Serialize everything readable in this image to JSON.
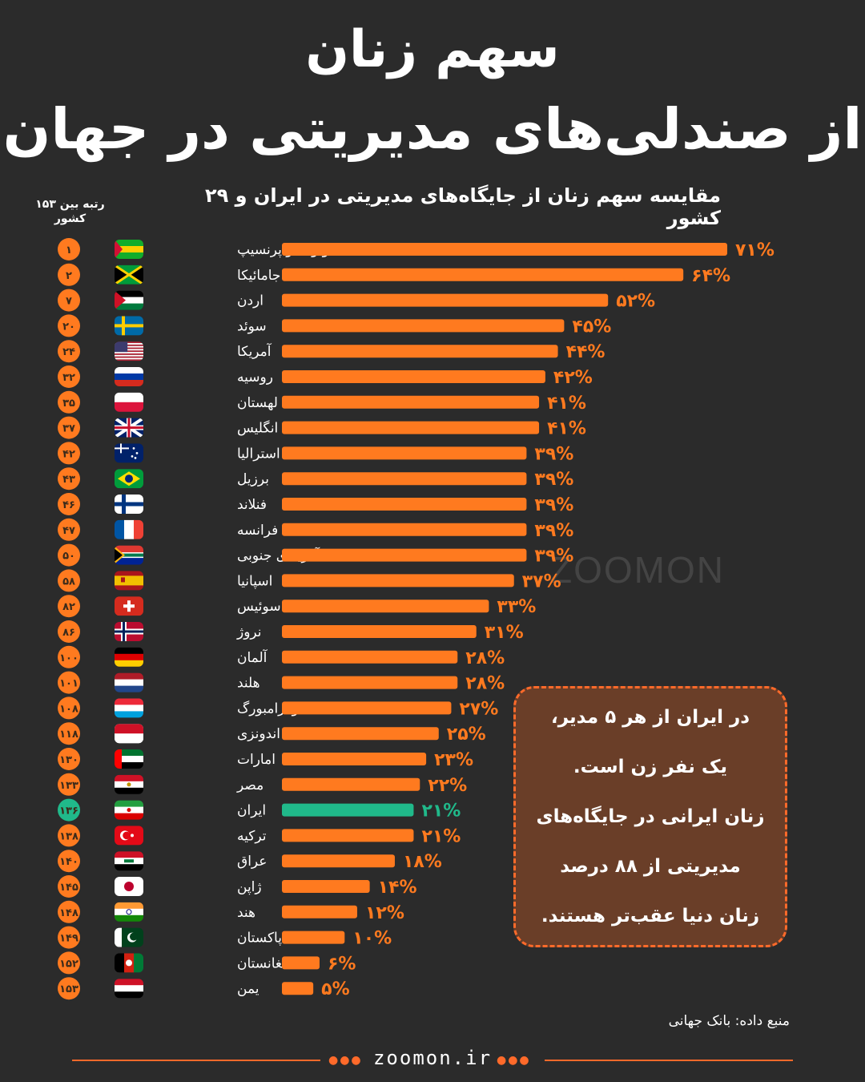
{
  "header": {
    "title_line1": "سهم زنان",
    "title_line2": "از صندلی‌های مدیریتی در جهان",
    "subtitle": "مقایسه سهم زنان از جایگاه‌های مدیریتی در ایران و ۲۹ کشور",
    "rank_header_line1": "رتبه بین ۱۵۳",
    "rank_header_line2": "کشور"
  },
  "chart_data": {
    "type": "bar",
    "orientation": "horizontal",
    "unit": "%",
    "highlight": "ایران",
    "colors": {
      "bar": "#ff7a1f",
      "highlight": "#20b98a",
      "background": "#2b2b2b"
    },
    "rows": [
      {
        "rank": "۱",
        "country": "سائوتومه و پرنسیپ",
        "value": 71,
        "label": "۷۱%",
        "flag": "sao-tome-flag"
      },
      {
        "rank": "۲",
        "country": "جامائیکا",
        "value": 64,
        "label": "۶۴%",
        "flag": "jamaica-flag"
      },
      {
        "rank": "۷",
        "country": "اردن",
        "value": 52,
        "label": "۵۲%",
        "flag": "jordan-flag"
      },
      {
        "rank": "۲۰",
        "country": "سوئد",
        "value": 45,
        "label": "۴۵%",
        "flag": "sweden-flag"
      },
      {
        "rank": "۲۴",
        "country": "آمریکا",
        "value": 44,
        "label": "۴۴%",
        "flag": "usa-flag"
      },
      {
        "rank": "۳۲",
        "country": "روسیه",
        "value": 42,
        "label": "۴۲%",
        "flag": "russia-flag"
      },
      {
        "rank": "۳۵",
        "country": "لهستان",
        "value": 41,
        "label": "۴۱%",
        "flag": "poland-flag"
      },
      {
        "rank": "۳۷",
        "country": "انگلیس",
        "value": 41,
        "label": "۴۱%",
        "flag": "uk-flag"
      },
      {
        "rank": "۴۲",
        "country": "استرالیا",
        "value": 39,
        "label": "۳۹%",
        "flag": "australia-flag"
      },
      {
        "rank": "۴۳",
        "country": "برزیل",
        "value": 39,
        "label": "۳۹%",
        "flag": "brazil-flag"
      },
      {
        "rank": "۴۶",
        "country": "فنلاند",
        "value": 39,
        "label": "۳۹%",
        "flag": "finland-flag"
      },
      {
        "rank": "۴۷",
        "country": "فرانسه",
        "value": 39,
        "label": "۳۹%",
        "flag": "france-flag"
      },
      {
        "rank": "۵۰",
        "country": "آفریقای جنوبی",
        "value": 39,
        "label": "۳۹%",
        "flag": "south-africa-flag"
      },
      {
        "rank": "۵۸",
        "country": "اسپانیا",
        "value": 37,
        "label": "۳۷%",
        "flag": "spain-flag"
      },
      {
        "rank": "۸۲",
        "country": "سوئیس",
        "value": 33,
        "label": "۳۳%",
        "flag": "switzerland-flag"
      },
      {
        "rank": "۸۶",
        "country": "نروژ",
        "value": 31,
        "label": "۳۱%",
        "flag": "norway-flag"
      },
      {
        "rank": "۱۰۰",
        "country": "آلمان",
        "value": 28,
        "label": "۲۸%",
        "flag": "germany-flag"
      },
      {
        "rank": "۱۰۱",
        "country": "هلند",
        "value": 28,
        "label": "۲۸%",
        "flag": "netherlands-flag"
      },
      {
        "rank": "۱۰۸",
        "country": "لوکزامبورگ",
        "value": 27,
        "label": "۲۷%",
        "flag": "luxembourg-flag"
      },
      {
        "rank": "۱۱۸",
        "country": "اندونزی",
        "value": 25,
        "label": "۲۵%",
        "flag": "indonesia-flag"
      },
      {
        "rank": "۱۳۰",
        "country": "امارات",
        "value": 23,
        "label": "۲۳%",
        "flag": "uae-flag"
      },
      {
        "rank": "۱۳۳",
        "country": "مصر",
        "value": 22,
        "label": "۲۲%",
        "flag": "egypt-flag"
      },
      {
        "rank": "۱۳۶",
        "country": "ایران",
        "value": 21,
        "label": "۲۱%",
        "flag": "iran-flag",
        "highlight": true
      },
      {
        "rank": "۱۳۸",
        "country": "ترکیه",
        "value": 21,
        "label": "۲۱%",
        "flag": "turkey-flag"
      },
      {
        "rank": "۱۴۰",
        "country": "عراق",
        "value": 18,
        "label": "۱۸%",
        "flag": "iraq-flag"
      },
      {
        "rank": "۱۴۵",
        "country": "ژاپن",
        "value": 14,
        "label": "۱۴%",
        "flag": "japan-flag"
      },
      {
        "rank": "۱۴۸",
        "country": "هند",
        "value": 12,
        "label": "۱۲%",
        "flag": "india-flag"
      },
      {
        "rank": "۱۴۹",
        "country": "پاکستان",
        "value": 10,
        "label": "۱۰%",
        "flag": "pakistan-flag"
      },
      {
        "rank": "۱۵۲",
        "country": "افغانستان",
        "value": 6,
        "label": "۶%",
        "flag": "afghanistan-flag"
      },
      {
        "rank": "۱۵۳",
        "country": "یمن",
        "value": 5,
        "label": "۵%",
        "flag": "yemen-flag"
      }
    ]
  },
  "note": {
    "line1": "در ایران از هر ۵ مدیر،",
    "line2": "یک نفر زن است.",
    "line3": "زنان ایرانی در جایگاه‌های",
    "line4": "مدیریتی از ۸۸ درصد",
    "line5": "زنان دنیا عقب‌تر هستند."
  },
  "source": "منبع داده: بانک جهانی",
  "watermark": "ZOOMON",
  "footer": {
    "site": "zoomon.ir",
    "dots": "●●●"
  }
}
